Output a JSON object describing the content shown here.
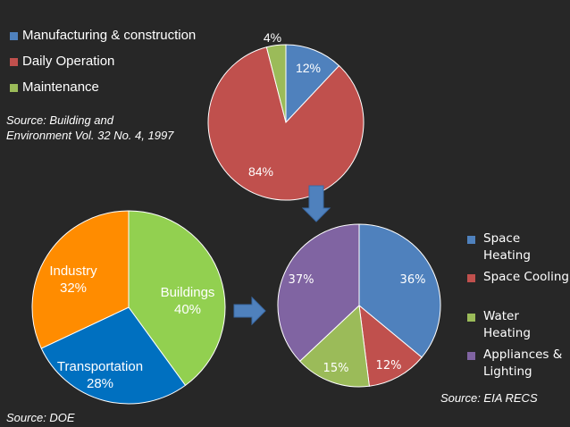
{
  "legend_top": {
    "items": [
      {
        "label": "Manufacturing & construction",
        "color": "#4F81BD"
      },
      {
        "label": "Daily Operation",
        "color": "#C0504D"
      },
      {
        "label": "Maintenance",
        "color": "#9BBB59"
      }
    ]
  },
  "sources": {
    "building_line1": "Source: Building and",
    "building_line2": "Environment Vol. 32 No. 4, 1997",
    "doe": "Source: DOE",
    "eia": "Source: EIA RECS"
  },
  "legend_right": {
    "items": [
      {
        "label": "Space Heating",
        "color": "#4F81BD"
      },
      {
        "label": "Space Cooling",
        "color": "#C0504D"
      },
      {
        "label": "Water Heating",
        "color": "#9BBB59"
      },
      {
        "label_line1": "Appliances &",
        "label_line2": "Lighting",
        "color": "#8064A2"
      }
    ]
  },
  "chart_data": [
    {
      "type": "pie",
      "title": "",
      "categories": [
        "Manufacturing & construction",
        "Daily Operation",
        "Maintenance"
      ],
      "values": [
        12,
        84,
        4
      ],
      "labels": [
        "12%",
        "84%",
        "4%"
      ],
      "colors": [
        "#4F81BD",
        "#C0504D",
        "#9BBB59"
      ]
    },
    {
      "type": "pie",
      "title": "",
      "categories": [
        "Buildings",
        "Transportation",
        "Industry"
      ],
      "values": [
        40,
        28,
        32
      ],
      "labels": [
        "Buildings 40%",
        "Transportation 28%",
        "Industry 32%"
      ],
      "label_lines": [
        [
          "Buildings",
          "40%"
        ],
        [
          "Transportation",
          "28%"
        ],
        [
          "Industry",
          "32%"
        ]
      ],
      "colors": [
        "#92D050",
        "#0070C0",
        "#FF8C00"
      ]
    },
    {
      "type": "pie",
      "title": "",
      "categories": [
        "Space Heating",
        "Space Cooling",
        "Water Heating",
        "Appliances & Lighting"
      ],
      "values": [
        36,
        12,
        15,
        37
      ],
      "labels": [
        "36%",
        "12%",
        "15%",
        "37%"
      ],
      "colors": [
        "#4F81BD",
        "#C0504D",
        "#9BBB59",
        "#8064A2"
      ]
    }
  ]
}
